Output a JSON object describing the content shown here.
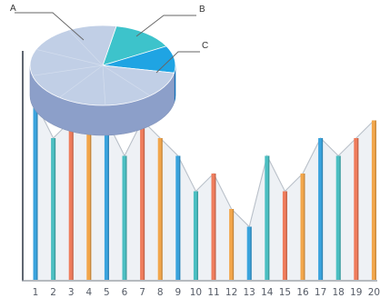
{
  "chart_data": [
    {
      "type": "bar",
      "title": "",
      "xlabel": "",
      "ylabel": "",
      "categories": [
        "1",
        "2",
        "3",
        "4",
        "5",
        "6",
        "7",
        "8",
        "9",
        "10",
        "11",
        "12",
        "13",
        "14",
        "15",
        "16",
        "17",
        "18",
        "19",
        "20"
      ],
      "values": [
        10,
        8,
        9,
        9,
        9,
        7,
        9,
        8,
        7,
        5,
        6,
        4,
        3,
        7,
        5,
        6,
        8,
        7,
        8,
        9
      ],
      "ylim": [
        0,
        10
      ],
      "grid": false,
      "trend_line": true,
      "colors": [
        "#3aa3dd",
        "#4bbfc2",
        "#ef7c5c",
        "#f2a64b"
      ]
    },
    {
      "type": "pie",
      "style": "3d",
      "slices": [
        {
          "label": "A",
          "value": 75,
          "color": "#c1cfe6"
        },
        {
          "label": "B",
          "value": 14,
          "color": "#3dc3cb"
        },
        {
          "label": "C",
          "value": 11,
          "color": "#1fa4e3"
        }
      ]
    }
  ]
}
